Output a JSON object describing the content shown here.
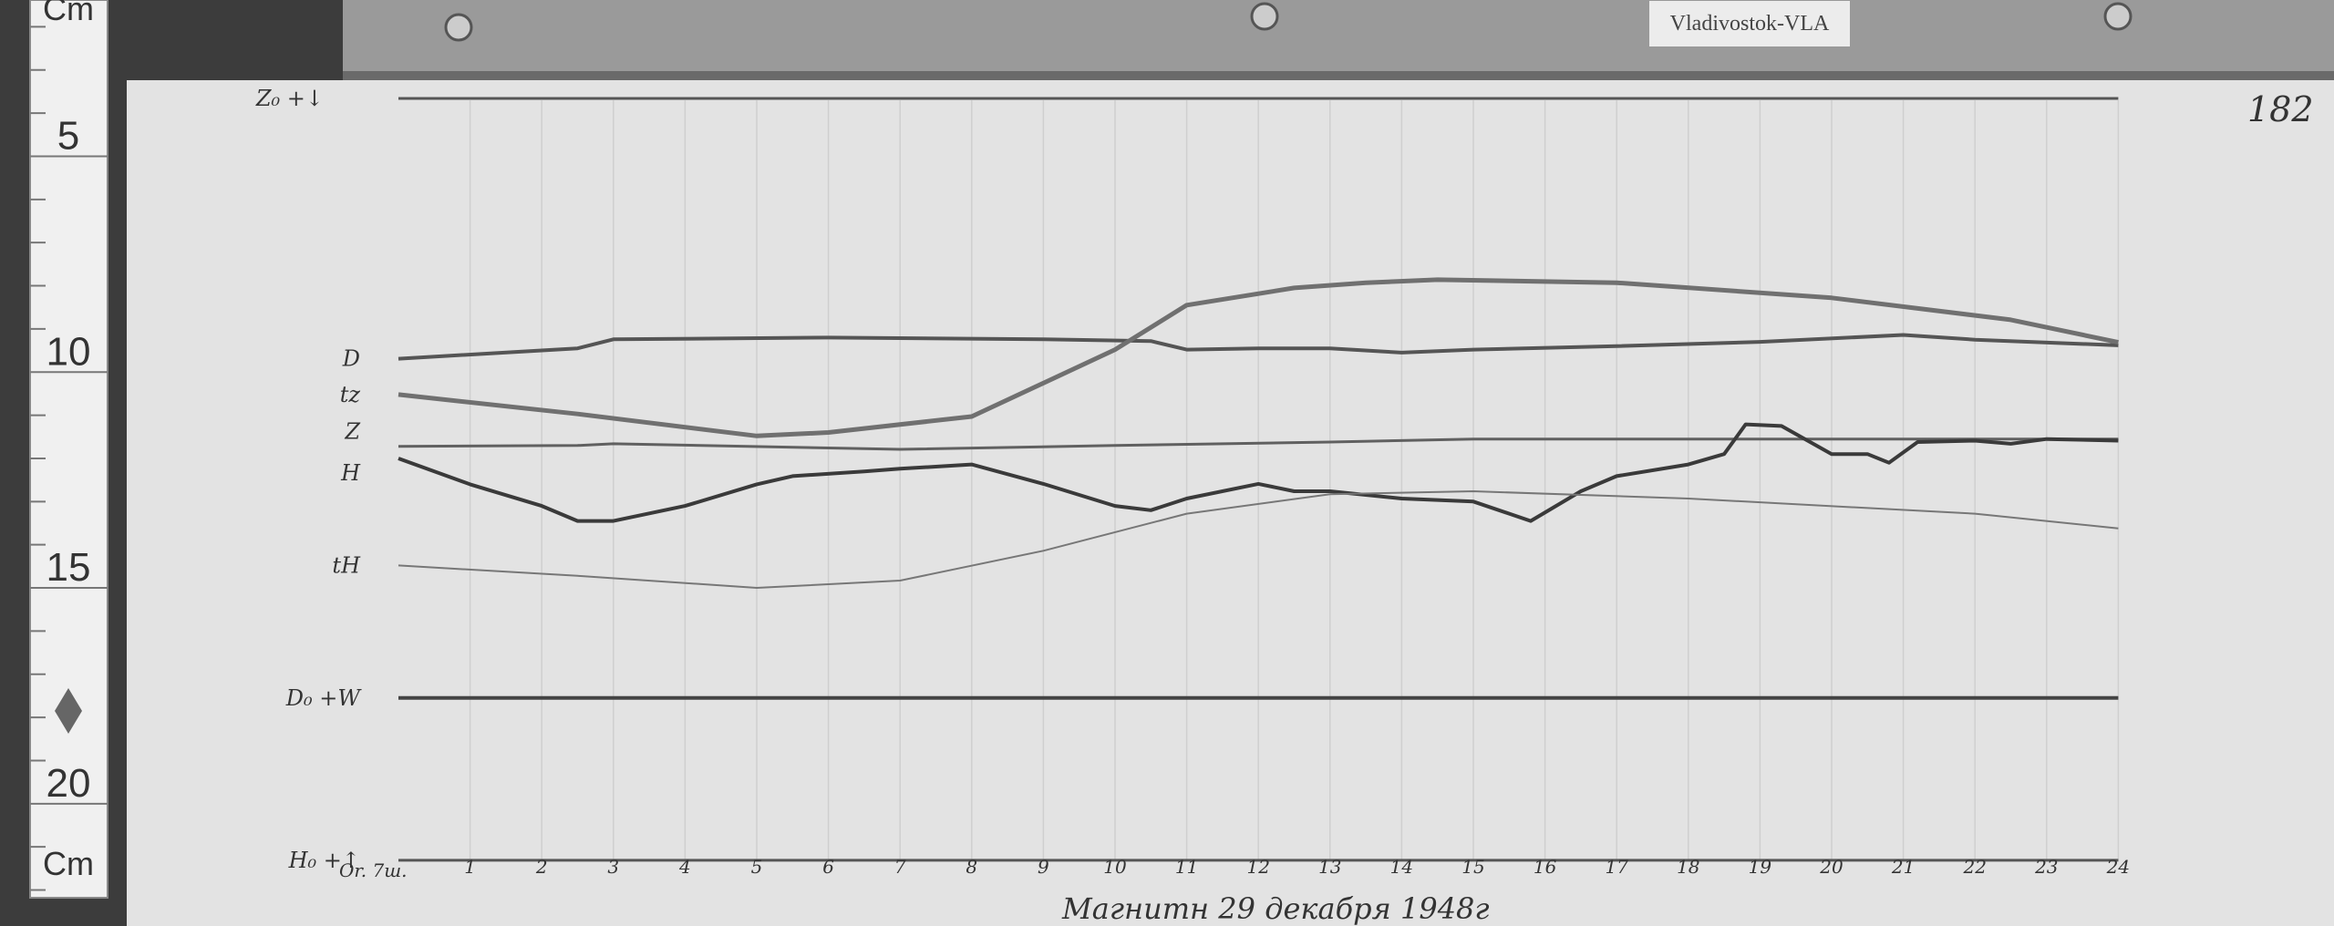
{
  "station_label": "Vladivostok-VLA",
  "sheet_number": "182",
  "ruler": {
    "unit": "Cm",
    "ticks": [
      "5",
      "10",
      "15",
      "20"
    ]
  },
  "caption": "Магнитн 29 декабря 1948г",
  "baseline_label": "Or. 7ш.",
  "chart_data": {
    "type": "line",
    "title": "Магнитн 29 декабря 1948г",
    "xlabel": "",
    "ylabel": "",
    "x_unit": "hour",
    "y_unit": "cm (ruler)",
    "xlim": [
      0,
      24
    ],
    "ylim": [
      3,
      22
    ],
    "x_tick_labels": [
      "1",
      "2",
      "3",
      "4",
      "5",
      "6",
      "7",
      "8",
      "9",
      "10",
      "11",
      "12",
      "13",
      "14",
      "15",
      "16",
      "17",
      "18",
      "19",
      "20",
      "21",
      "22",
      "23",
      "24"
    ],
    "grid": "vertical hour lines",
    "series": [
      {
        "name": "Z₀",
        "label": "Z₀ +↓",
        "width": 3,
        "color": "#555555",
        "points": [
          [
            0,
            3.66
          ],
          [
            24,
            3.66
          ]
        ]
      },
      {
        "name": "D",
        "label": "D",
        "width": 4,
        "color": "#555555",
        "points": [
          [
            0,
            9.69
          ],
          [
            2.5,
            9.45
          ],
          [
            3,
            9.24
          ],
          [
            6,
            9.2
          ],
          [
            9,
            9.24
          ],
          [
            10.5,
            9.28
          ],
          [
            11,
            9.48
          ],
          [
            12,
            9.45
          ],
          [
            13,
            9.45
          ],
          [
            14,
            9.55
          ],
          [
            15,
            9.48
          ],
          [
            17,
            9.4
          ],
          [
            19,
            9.3
          ],
          [
            21,
            9.14
          ],
          [
            22,
            9.25
          ],
          [
            24,
            9.38
          ]
        ]
      },
      {
        "name": "tz",
        "label": "tz",
        "width": 5,
        "color": "#707070",
        "points": [
          [
            0,
            10.52
          ],
          [
            2.5,
            10.97
          ],
          [
            5,
            11.48
          ],
          [
            6,
            11.4
          ],
          [
            8,
            11.03
          ],
          [
            10,
            9.48
          ],
          [
            11,
            8.45
          ],
          [
            12.5,
            8.05
          ],
          [
            13.5,
            7.93
          ],
          [
            14.5,
            7.86
          ],
          [
            17,
            7.93
          ],
          [
            20,
            8.28
          ],
          [
            22.5,
            8.79
          ],
          [
            24,
            9.31
          ]
        ]
      },
      {
        "name": "Z",
        "label": "Z",
        "width": 3,
        "color": "#606060",
        "points": [
          [
            0,
            11.72
          ],
          [
            2.5,
            11.7
          ],
          [
            3,
            11.66
          ],
          [
            7,
            11.79
          ],
          [
            10,
            11.7
          ],
          [
            13,
            11.62
          ],
          [
            15,
            11.55
          ],
          [
            24,
            11.55
          ]
        ]
      },
      {
        "name": "H",
        "label": "H",
        "width": 4,
        "color": "#3a3a3a",
        "points": [
          [
            0,
            12.0
          ],
          [
            1,
            12.6
          ],
          [
            2,
            13.1
          ],
          [
            2.5,
            13.45
          ],
          [
            3,
            13.45
          ],
          [
            4,
            13.1
          ],
          [
            5,
            12.6
          ],
          [
            5.5,
            12.41
          ],
          [
            6.5,
            12.3
          ],
          [
            7,
            12.24
          ],
          [
            8,
            12.14
          ],
          [
            9,
            12.59
          ],
          [
            10,
            13.1
          ],
          [
            10.5,
            13.2
          ],
          [
            11,
            12.93
          ],
          [
            12,
            12.59
          ],
          [
            12.5,
            12.76
          ],
          [
            13,
            12.76
          ],
          [
            14,
            12.93
          ],
          [
            15,
            13.0
          ],
          [
            15.8,
            13.45
          ],
          [
            16.5,
            12.76
          ],
          [
            17,
            12.41
          ],
          [
            18,
            12.14
          ],
          [
            18.5,
            11.9
          ],
          [
            18.8,
            11.21
          ],
          [
            19.3,
            11.25
          ],
          [
            20,
            11.9
          ],
          [
            20.5,
            11.9
          ],
          [
            20.8,
            12.1
          ],
          [
            21.2,
            11.62
          ],
          [
            22,
            11.59
          ],
          [
            22.5,
            11.66
          ],
          [
            23,
            11.55
          ],
          [
            24,
            11.59
          ]
        ]
      },
      {
        "name": "tH",
        "label": "tH",
        "width": 2,
        "color": "#777777",
        "points": [
          [
            0,
            14.48
          ],
          [
            2.5,
            14.72
          ],
          [
            5,
            15.0
          ],
          [
            7,
            14.83
          ],
          [
            9,
            14.14
          ],
          [
            11,
            13.28
          ],
          [
            13,
            12.83
          ],
          [
            15,
            12.76
          ],
          [
            18,
            12.93
          ],
          [
            22,
            13.28
          ],
          [
            24,
            13.62
          ]
        ]
      },
      {
        "name": "D₀",
        "label": "D₀ +W",
        "width": 4,
        "color": "#444444",
        "points": [
          [
            0,
            17.55
          ],
          [
            24,
            17.55
          ]
        ]
      },
      {
        "name": "H₀",
        "label": "H₀ +↑",
        "width": 3,
        "color": "#555555",
        "points": [
          [
            0,
            21.31
          ],
          [
            24,
            21.31
          ]
        ]
      }
    ]
  }
}
